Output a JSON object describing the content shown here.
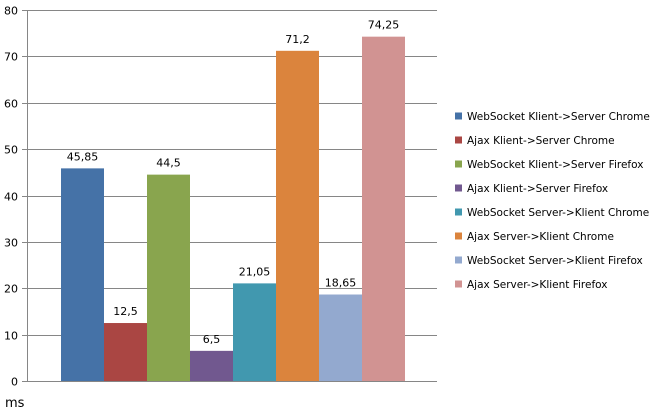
{
  "chart_data": {
    "type": "bar",
    "xlabel": "ms",
    "ylim": [
      0,
      80
    ],
    "yticks": [
      "0",
      "10",
      "20",
      "30",
      "40",
      "50",
      "60",
      "70",
      "80"
    ],
    "grid": true,
    "legend_position": "right",
    "series": [
      {
        "name": "WebSocket Klient->Server Chrome",
        "value": 45.85,
        "label": "45,85",
        "color": "#4572A7"
      },
      {
        "name": "Ajax Klient->Server Chrome",
        "value": 12.5,
        "label": "12,5",
        "color": "#AA4643"
      },
      {
        "name": "WebSocket Klient->Server Firefox",
        "value": 44.5,
        "label": "44,5",
        "color": "#89A54E"
      },
      {
        "name": "Ajax Klient->Server Firefox",
        "value": 6.5,
        "label": "6,5",
        "color": "#71588F"
      },
      {
        "name": "WebSocket Server->Klient Chrome",
        "value": 21.05,
        "label": "21,05",
        "color": "#4198AF"
      },
      {
        "name": "Ajax Server->Klient Chrome",
        "value": 71.2,
        "label": "71,2",
        "color": "#DB843D"
      },
      {
        "name": "WebSocket Server->Klient Firefox",
        "value": 18.65,
        "label": "18,65",
        "color": "#93A9CF"
      },
      {
        "name": "Ajax Server->Klient Firefox",
        "value": 74.25,
        "label": "74,25",
        "color": "#D19392"
      }
    ]
  }
}
